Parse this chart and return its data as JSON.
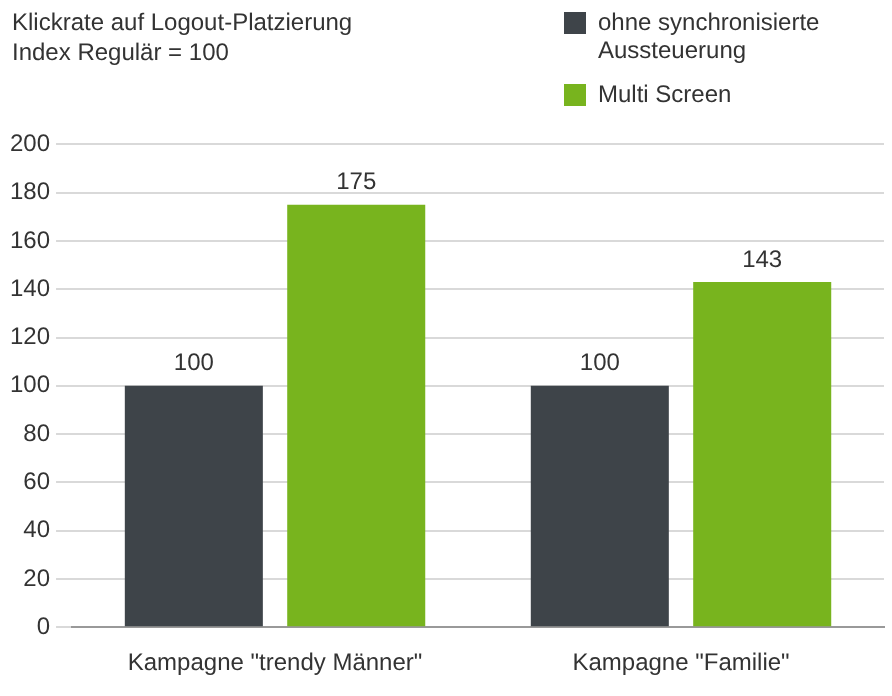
{
  "chart_data": {
    "type": "bar",
    "title": "Klickrate auf Logout-Platzierung",
    "subtitle": "Index Regulär = 100",
    "categories": [
      "Kampagne \"trendy Männer\"",
      "Kampagne \"Familie\""
    ],
    "series": [
      {
        "name": "ohne synchronisierte Aussteuerung",
        "color": "#3e4449",
        "values": [
          100,
          100
        ]
      },
      {
        "name": "Multi Screen",
        "color": "#78b41e",
        "values": [
          175,
          143
        ]
      }
    ],
    "ylim": [
      0,
      200
    ],
    "yticks": [
      0,
      20,
      40,
      60,
      80,
      100,
      120,
      140,
      160,
      180,
      200
    ],
    "grid": "y",
    "legend": "top right",
    "data_labels": true
  }
}
